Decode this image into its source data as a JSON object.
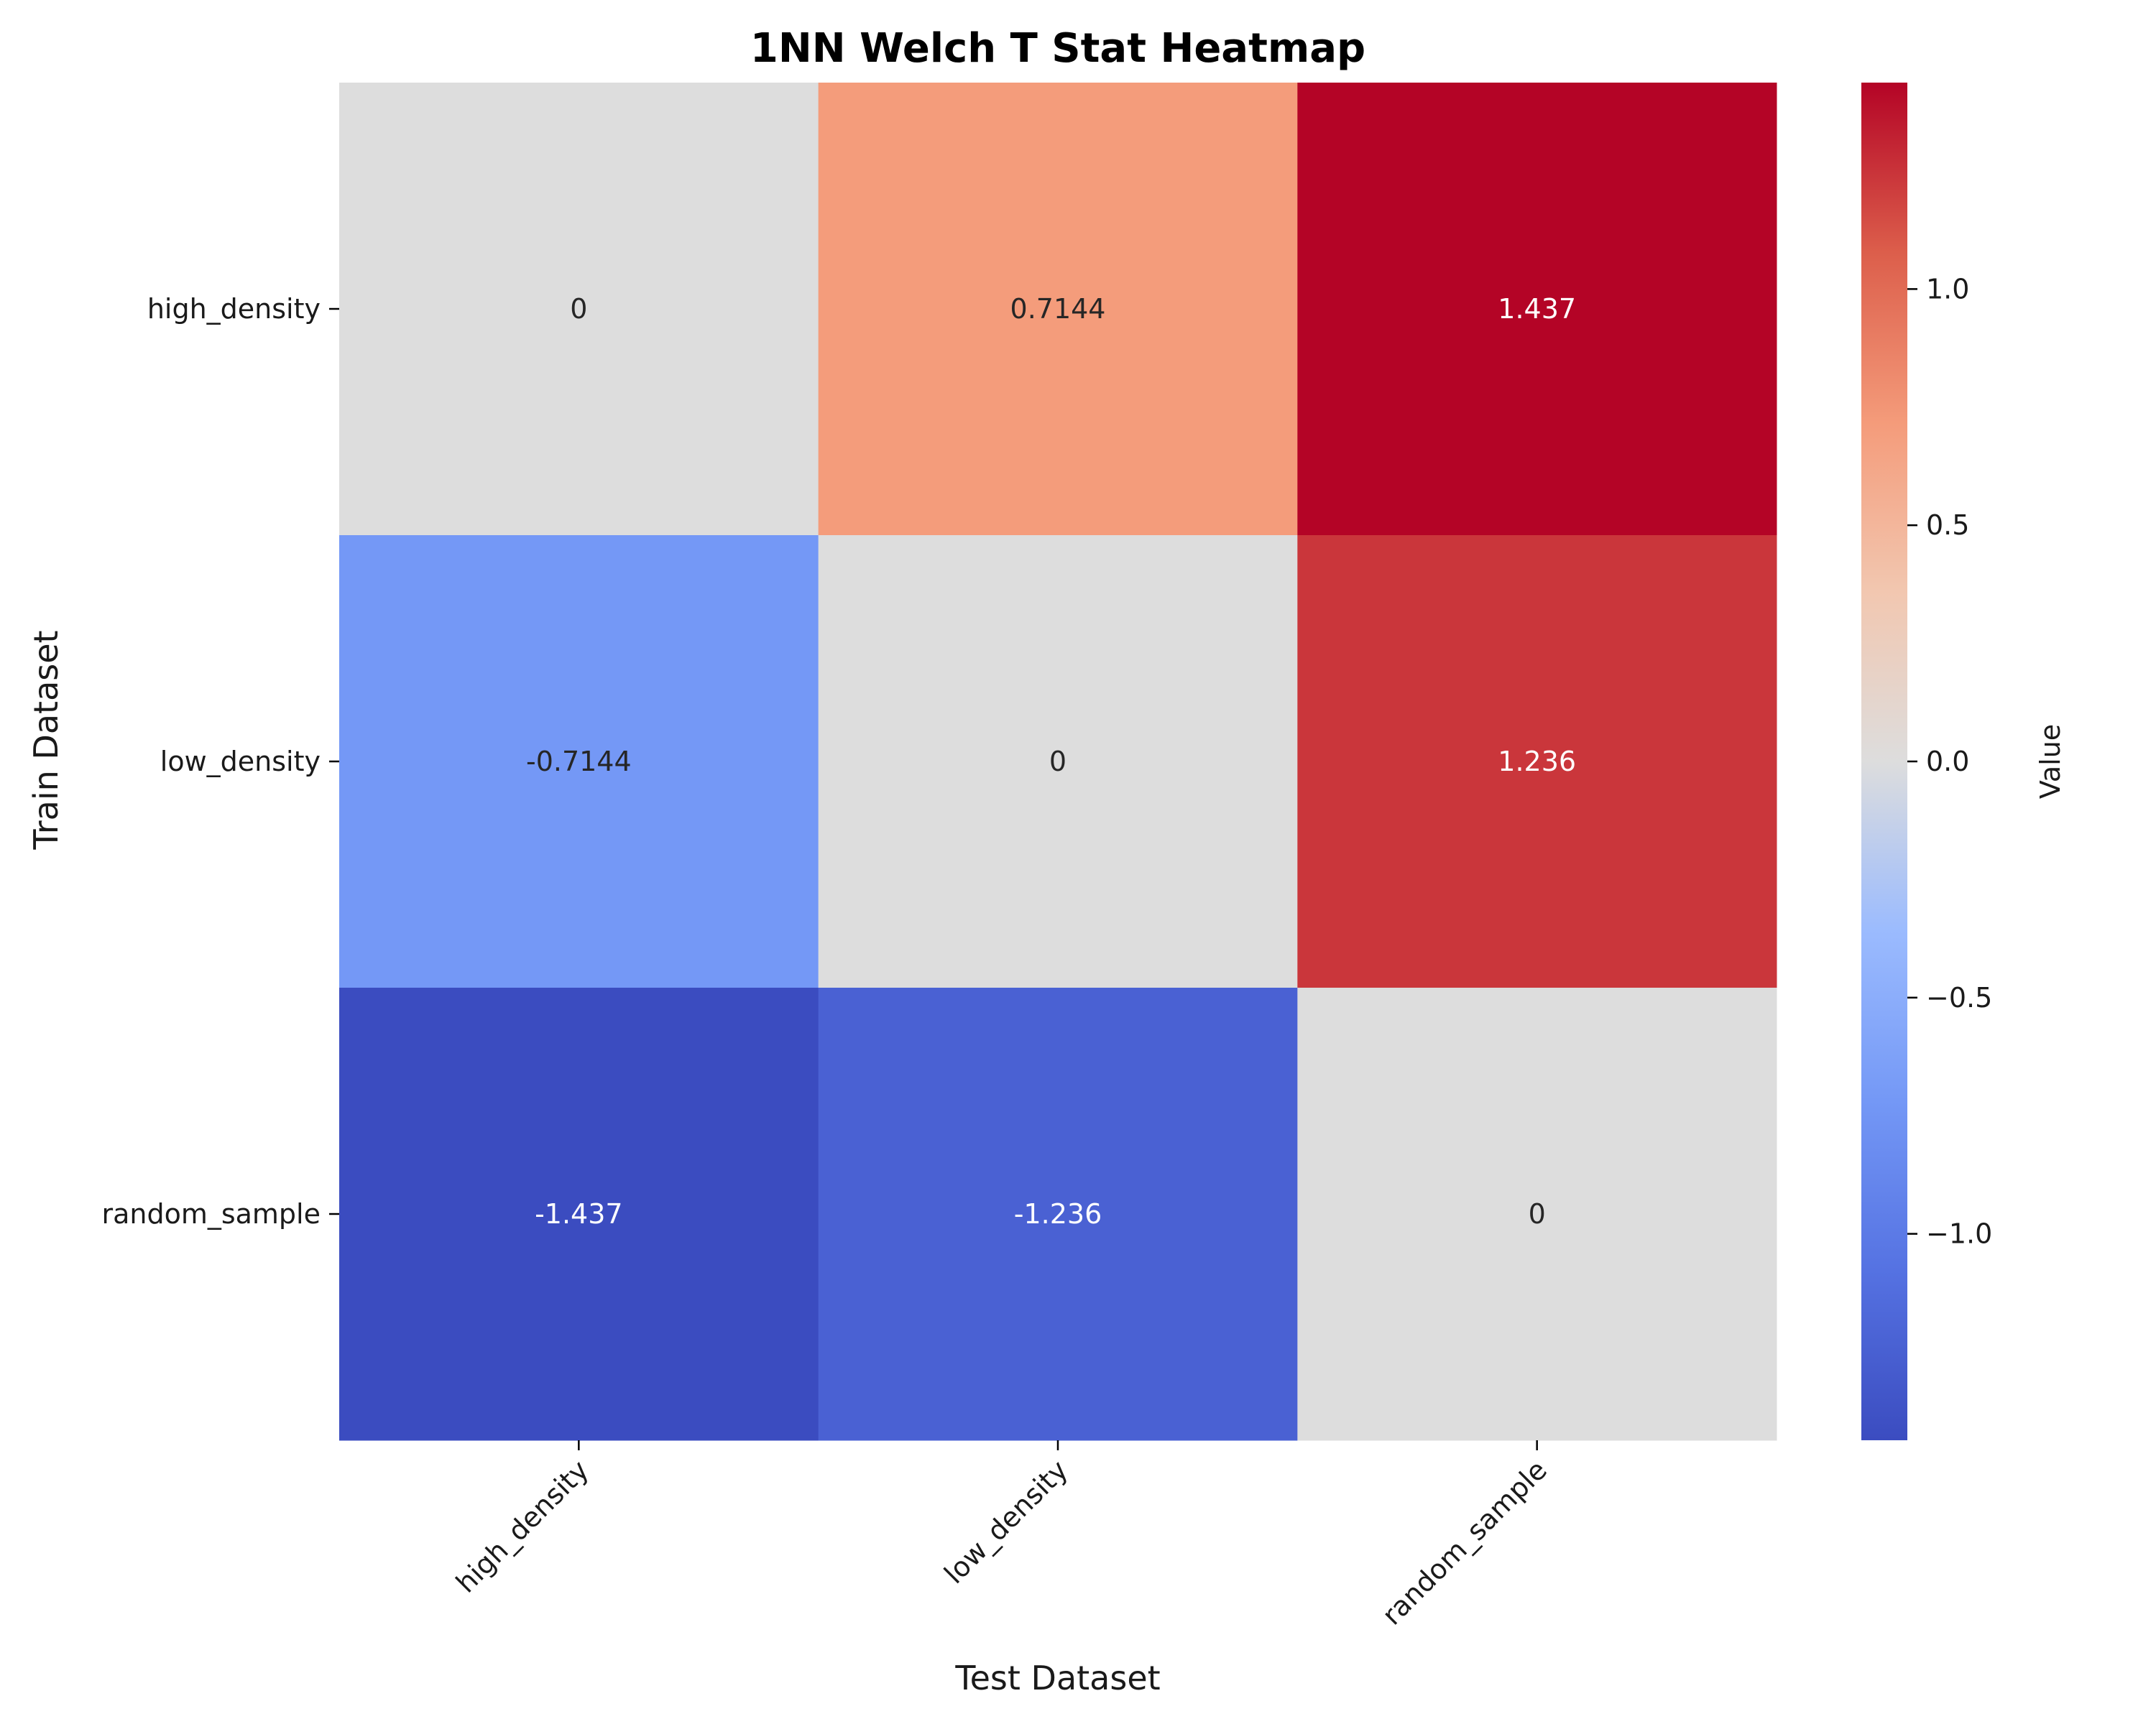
{
  "chart_data": {
    "type": "heatmap",
    "title": "1NN Welch T Stat Heatmap",
    "xlabel": "Test Dataset",
    "ylabel": "Train Dataset",
    "x_categories": [
      "high_density",
      "low_density",
      "random_sample"
    ],
    "y_categories": [
      "high_density",
      "low_density",
      "random_sample"
    ],
    "values": [
      [
        0,
        0.7144,
        1.437
      ],
      [
        -0.7144,
        0,
        1.236
      ],
      [
        -1.437,
        -1.236,
        0
      ]
    ],
    "cell_labels": [
      [
        "0",
        "0.7144",
        "1.437"
      ],
      [
        "-0.7144",
        "0",
        "1.236"
      ],
      [
        "-1.437",
        "-1.236",
        "0"
      ]
    ],
    "colormap": "coolwarm",
    "vmin": -1.437,
    "vmax": 1.437,
    "colorbar": {
      "label": "Value",
      "ticks": [
        1.0,
        0.5,
        0.0,
        -0.5,
        -1.0
      ],
      "tick_labels": [
        "1.0",
        "0.5",
        "0.0",
        "−0.5",
        "−1.0"
      ]
    }
  }
}
